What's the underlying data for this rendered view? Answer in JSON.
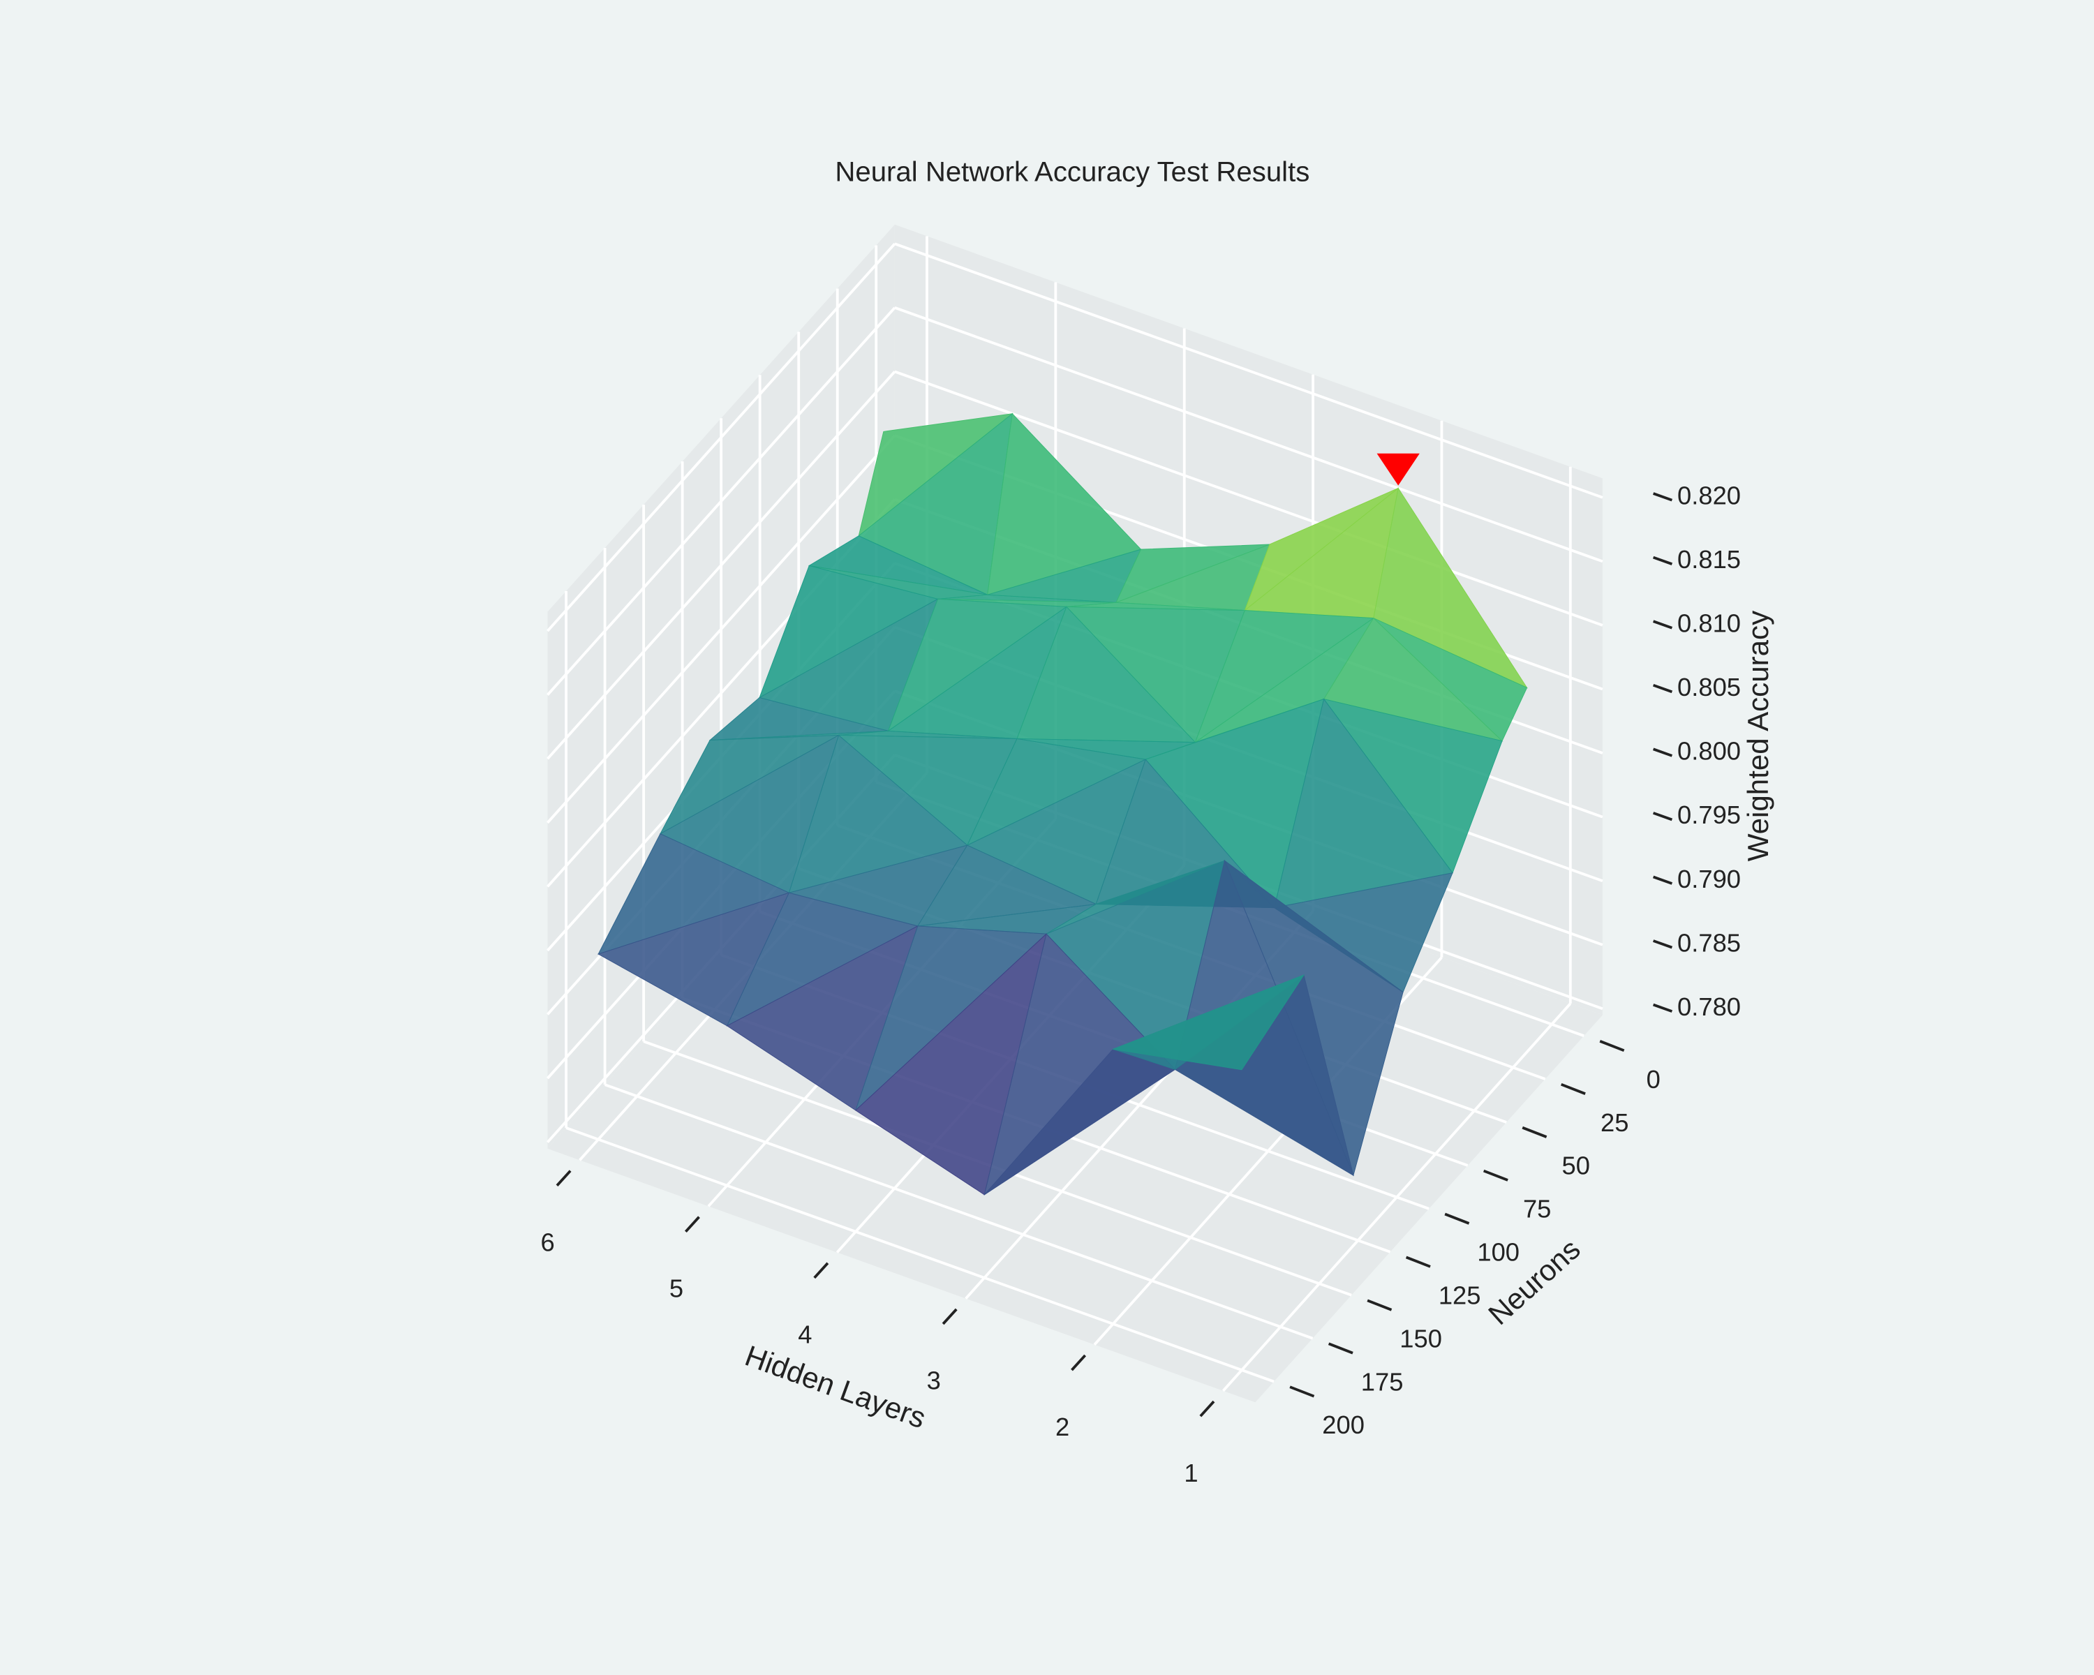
{
  "chart_data": {
    "type": "surface",
    "title": "Neural Network Accuracy Test Results",
    "x_label": "Hidden Layers",
    "y_label": "Neurons",
    "z_label": "Weighted Accuracy",
    "x": [
      1,
      2,
      3,
      4,
      5,
      6
    ],
    "y": [
      16,
      32,
      64,
      96,
      128,
      160,
      200
    ],
    "values": [
      [
        0.808,
        0.806,
        0.8,
        0.795,
        0.785,
        0.805,
        0.803
      ],
      [
        0.82,
        0.812,
        0.81,
        0.798,
        0.806,
        0.794,
        0.801
      ],
      [
        0.812,
        0.809,
        0.803,
        0.806,
        0.799,
        0.801,
        0.786
      ],
      [
        0.808,
        0.806,
        0.81,
        0.804,
        0.8,
        0.798,
        0.789
      ],
      [
        0.815,
        0.803,
        0.807,
        0.801,
        0.805,
        0.797,
        0.792
      ],
      [
        0.81,
        0.804,
        0.806,
        0.8,
        0.801,
        0.798,
        0.794
      ]
    ],
    "colorscale": "Viridis",
    "xlim": [
      0.75,
      6.25
    ],
    "xticks": [
      1,
      2,
      3,
      4,
      5,
      6
    ],
    "ylim": [
      -12,
      212
    ],
    "yticks": [
      0,
      25,
      50,
      75,
      100,
      125,
      150,
      175,
      200
    ],
    "zlim": [
      0.7795,
      0.8215
    ],
    "zticks": [
      {
        "value": 0.78,
        "label": "0.780"
      },
      0.785,
      {
        "value": 0.79,
        "label": "0.790"
      },
      0.795,
      {
        "value": 0.8,
        "label": "0.800"
      },
      0.805,
      {
        "value": 0.81,
        "label": "0.810"
      },
      0.815,
      {
        "value": 0.82,
        "label": "0.820"
      }
    ],
    "marker": {
      "x": 2,
      "y": 16,
      "z": 0.82,
      "color": "#ff0000"
    }
  }
}
